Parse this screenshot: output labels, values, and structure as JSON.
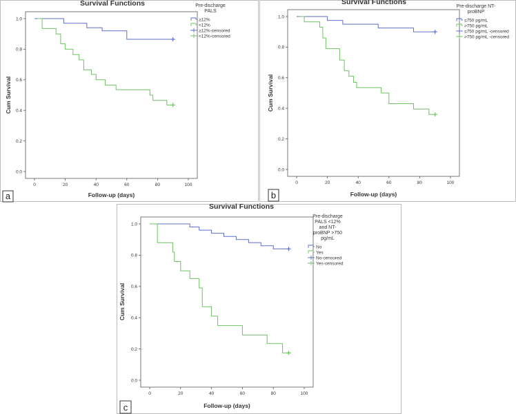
{
  "figure": {
    "panels": [
      {
        "id": "a",
        "label": "a"
      },
      {
        "id": "b",
        "label": "b"
      },
      {
        "id": "c",
        "label": "c"
      }
    ]
  },
  "colors": {
    "group_low": "#5b6ec9",
    "group_high": "#6cc160",
    "axes": "#555555",
    "frame": "#bbbbbb",
    "label_box": "#333333"
  },
  "chart_data": [
    {
      "panel": "a",
      "type": "line",
      "title": "Survival Functions",
      "xlabel": "Follow-up (days)",
      "ylabel": "Cum Survival",
      "xlim": [
        0,
        100
      ],
      "ylim": [
        0,
        1
      ],
      "xticks": [
        "0",
        "20",
        "40",
        "60",
        "80",
        "100"
      ],
      "yticks": [
        "0.0",
        "0.2",
        "0.4",
        "0.6",
        "0.8",
        "1.0"
      ],
      "legend_title": [
        "Pre-discharge",
        "PALS"
      ],
      "legend_entries": [
        "≥12%",
        "<12%",
        "≥12%-censored",
        "<12%-censored"
      ],
      "series": [
        {
          "name": "≥12%",
          "color_key": "group_low",
          "times": [
            0,
            10,
            19,
            34,
            44,
            60,
            90
          ],
          "survival": [
            1.0,
            1.0,
            0.97,
            0.94,
            0.92,
            0.865,
            0.865
          ],
          "censored_at": [
            90
          ]
        },
        {
          "name": "<12%",
          "color_key": "group_high",
          "times": [
            2,
            5,
            14,
            17,
            20,
            25,
            29,
            32,
            37,
            40,
            46,
            53,
            75,
            77,
            86,
            90
          ],
          "survival": [
            1.0,
            0.935,
            0.9,
            0.835,
            0.8,
            0.765,
            0.73,
            0.665,
            0.635,
            0.6,
            0.565,
            0.535,
            0.5,
            0.465,
            0.435,
            0.435
          ],
          "censored_at": [
            90
          ]
        }
      ]
    },
    {
      "panel": "b",
      "type": "line",
      "title": "Survival Functions",
      "xlabel": "Follow-up (days)",
      "ylabel": "Cum Survival",
      "xlim": [
        0,
        100
      ],
      "ylim": [
        0,
        1
      ],
      "xticks": [
        "0",
        "20",
        "40",
        "60",
        "80",
        "100"
      ],
      "yticks": [
        "0.0",
        "0.2",
        "0.4",
        "0.6",
        "0.8",
        "1.0"
      ],
      "legend_title": [
        "Pre-discharge NT-",
        "proBNP"
      ],
      "legend_entries": [
        "≤750 pg/mL",
        ">750 pg/mL",
        "≤750 pg/mL -censored",
        ">750 pg/mL -censored"
      ],
      "series": [
        {
          "name": "≤750 pg/mL",
          "color_key": "group_low",
          "times": [
            0,
            12,
            20,
            30,
            53,
            76,
            90
          ],
          "survival": [
            1.0,
            1.0,
            0.975,
            0.95,
            0.925,
            0.9,
            0.9
          ],
          "censored_at": [
            90
          ]
        },
        {
          "name": ">750 pg/mL",
          "color_key": "group_high",
          "times": [
            2,
            5,
            15,
            17,
            19,
            28,
            31,
            34,
            37,
            39,
            43,
            55,
            60,
            76,
            86,
            90
          ],
          "survival": [
            1.0,
            0.965,
            0.93,
            0.86,
            0.79,
            0.715,
            0.645,
            0.61,
            0.57,
            0.535,
            0.535,
            0.5,
            0.43,
            0.395,
            0.36,
            0.36
          ],
          "censored_at": [
            90
          ]
        }
      ]
    },
    {
      "panel": "c",
      "type": "line",
      "title": "Survival Functions",
      "xlabel": "Follow-up (days)",
      "ylabel": "Cum Survival",
      "xlim": [
        0,
        100
      ],
      "ylim": [
        0,
        1
      ],
      "xticks": [
        "0",
        "20",
        "40",
        "60",
        "80",
        "100"
      ],
      "yticks": [
        "0.0",
        "0.2",
        "0.4",
        "0.6",
        "0.8",
        "1.0"
      ],
      "legend_title": [
        "Pre-discharge",
        "PALS <12%",
        "and NT-",
        "proBNP >750",
        "pg/mL"
      ],
      "legend_entries": [
        "No",
        "Yes",
        "No-censored",
        "Yes-censored"
      ],
      "series": [
        {
          "name": "No",
          "color_key": "group_low",
          "times": [
            0,
            20,
            26,
            32,
            40,
            48,
            56,
            64,
            72,
            80,
            90
          ],
          "survival": [
            1.0,
            1.0,
            0.98,
            0.96,
            0.94,
            0.92,
            0.9,
            0.88,
            0.86,
            0.84,
            0.84
          ],
          "censored_at": [
            90
          ]
        },
        {
          "name": "Yes",
          "color_key": "group_high",
          "times": [
            0,
            5,
            15,
            16,
            20,
            26,
            32,
            34,
            40,
            44,
            60,
            76,
            86,
            90
          ],
          "survival": [
            1.0,
            0.88,
            0.82,
            0.76,
            0.7,
            0.65,
            0.59,
            0.47,
            0.41,
            0.35,
            0.29,
            0.235,
            0.175,
            0.175
          ],
          "censored_at": [
            90
          ]
        }
      ]
    }
  ]
}
